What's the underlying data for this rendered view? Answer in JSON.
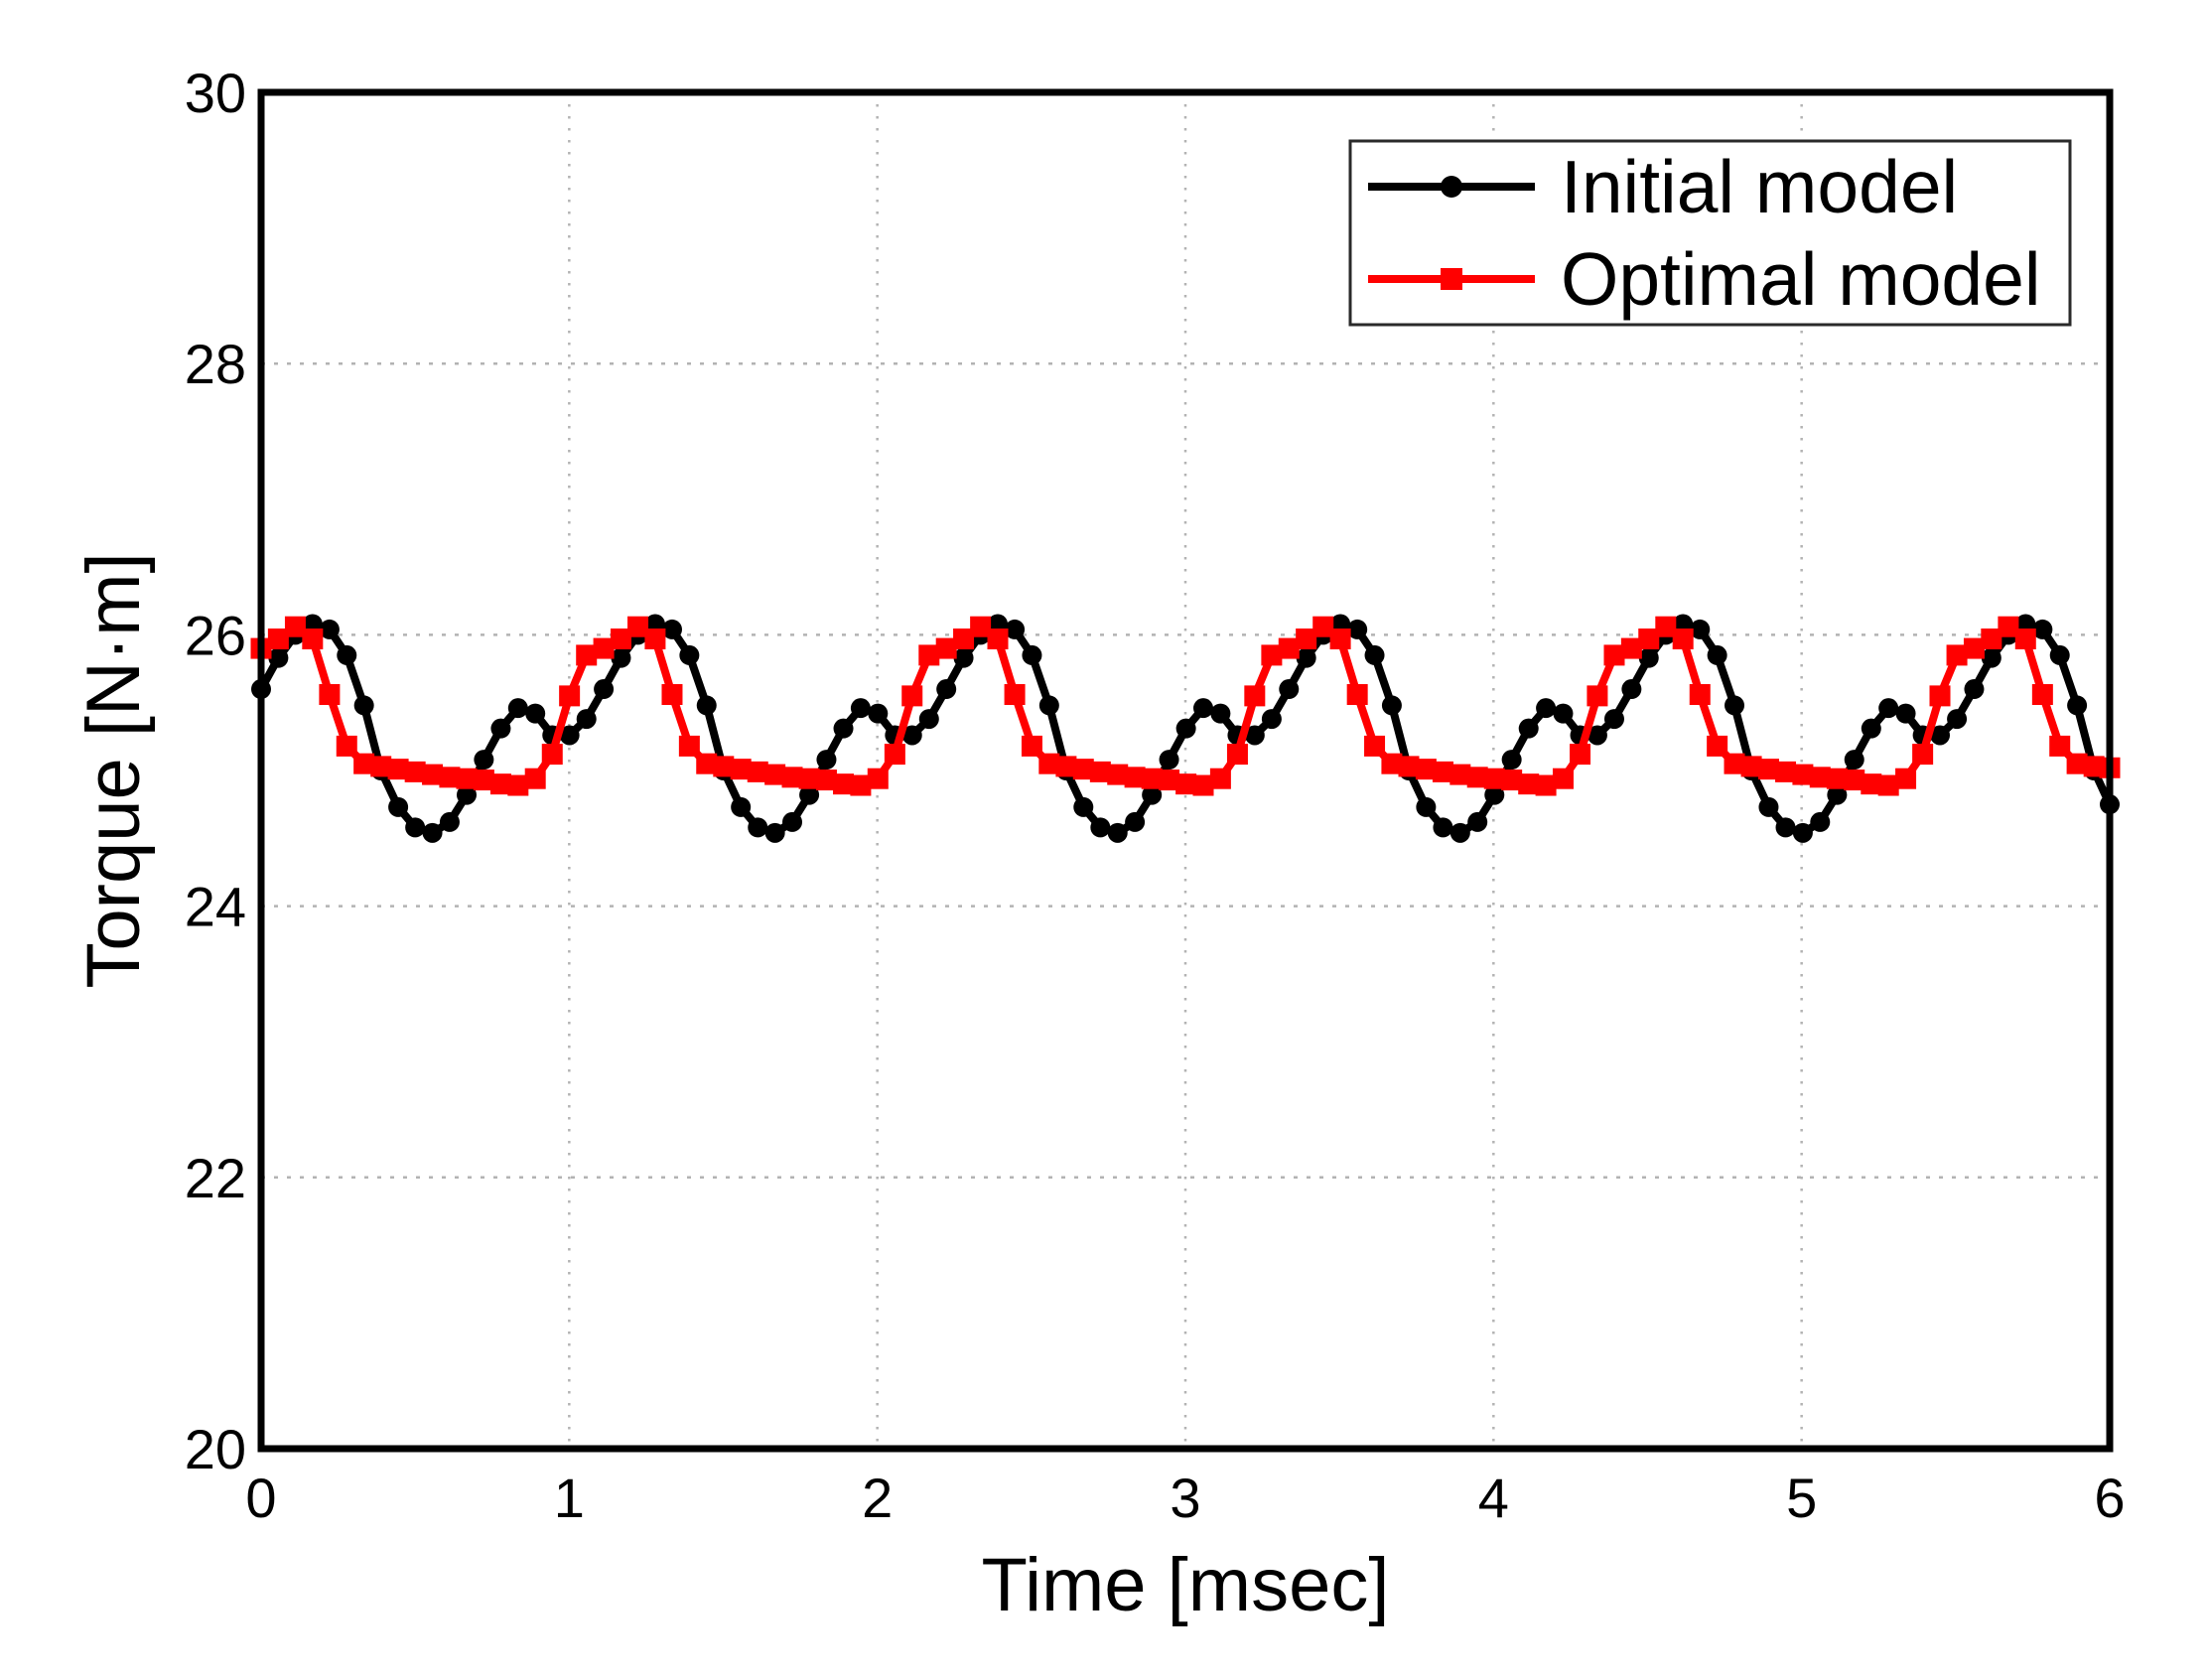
{
  "figure": {
    "background": "#ffffff",
    "frame_color": "#000000",
    "grid_color": "#b3b3b3"
  },
  "chart_data": {
    "type": "line",
    "title": "",
    "xlabel": "Time [msec]",
    "ylabel": "Torque [N·m]",
    "xlim": [
      0,
      6
    ],
    "ylim": [
      20,
      30
    ],
    "xticks": [
      0,
      1,
      2,
      3,
      4,
      5,
      6
    ],
    "yticks": [
      20,
      22,
      24,
      26,
      28,
      30
    ],
    "xtick_labels": [
      "0",
      "1",
      "2",
      "3",
      "4",
      "5",
      "6"
    ],
    "ytick_labels": [
      "20",
      "22",
      "24",
      "26",
      "28",
      "30"
    ],
    "grid": true,
    "legend_position": "top-right",
    "x": [
      0,
      0.056,
      0.111,
      0.167,
      0.222,
      0.278,
      0.334,
      0.389,
      0.445,
      0.5,
      0.556,
      0.612,
      0.667,
      0.723,
      0.778,
      0.834,
      0.89,
      0.945,
      1.001,
      1.056,
      1.112,
      1.168,
      1.223,
      1.279,
      1.334,
      1.39,
      1.446,
      1.501,
      1.557,
      1.612,
      1.668,
      1.724,
      1.779,
      1.835,
      1.89,
      1.946,
      2.002,
      2.057,
      2.113,
      2.168,
      2.224,
      2.28,
      2.335,
      2.391,
      2.446,
      2.502,
      2.558,
      2.613,
      2.669,
      2.724,
      2.78,
      2.836,
      2.891,
      2.947,
      3.002,
      3.058,
      3.114,
      3.169,
      3.225,
      3.28,
      3.336,
      3.392,
      3.447,
      3.503,
      3.558,
      3.614,
      3.67,
      3.725,
      3.781,
      3.836,
      3.892,
      3.948,
      4.003,
      4.059,
      4.114,
      4.17,
      4.226,
      4.281,
      4.337,
      4.392,
      4.448,
      4.504,
      4.559,
      4.615,
      4.67,
      4.726,
      4.782,
      4.837,
      4.893,
      4.948,
      5.004,
      5.06,
      5.115,
      5.171,
      5.226,
      5.282,
      5.338,
      5.393,
      5.449,
      5.504,
      5.56,
      5.616,
      5.671,
      5.727,
      5.782,
      5.838,
      5.894,
      5.949,
      6.0
    ],
    "series": [
      {
        "name": "Initial model",
        "color": "#000000",
        "marker": "circle",
        "line_width": 8,
        "values": [
          25.6,
          25.83,
          26.0,
          26.08,
          26.04,
          25.85,
          25.48,
          25.0,
          24.73,
          24.58,
          24.54,
          24.62,
          24.82,
          25.08,
          25.31,
          25.46,
          25.42,
          25.26,
          25.26,
          25.38,
          25.6,
          25.83,
          26.0,
          26.08,
          26.04,
          25.85,
          25.48,
          25.0,
          24.73,
          24.58,
          24.54,
          24.62,
          24.82,
          25.08,
          25.31,
          25.46,
          25.42,
          25.26,
          25.26,
          25.38,
          25.6,
          25.83,
          26.0,
          26.08,
          26.04,
          25.85,
          25.48,
          25.0,
          24.73,
          24.58,
          24.54,
          24.62,
          24.82,
          25.08,
          25.31,
          25.46,
          25.42,
          25.26,
          25.26,
          25.38,
          25.6,
          25.83,
          26.0,
          26.08,
          26.04,
          25.85,
          25.48,
          25.0,
          24.73,
          24.58,
          24.54,
          24.62,
          24.82,
          25.08,
          25.31,
          25.46,
          25.42,
          25.26,
          25.26,
          25.38,
          25.6,
          25.83,
          26.0,
          26.08,
          26.04,
          25.85,
          25.48,
          25.0,
          24.73,
          24.58,
          24.54,
          24.62,
          24.82,
          25.08,
          25.31,
          25.46,
          25.42,
          25.26,
          25.26,
          25.38,
          25.6,
          25.83,
          26.0,
          26.08,
          26.04,
          25.85,
          25.48,
          25.0,
          24.75
        ]
      },
      {
        "name": "Optimal model",
        "color": "#ff0000",
        "marker": "square",
        "line_width": 8,
        "values": [
          25.9,
          25.97,
          26.06,
          25.97,
          25.56,
          25.18,
          25.05,
          25.03,
          25.01,
          24.99,
          24.97,
          24.95,
          24.94,
          24.93,
          24.9,
          24.89,
          24.94,
          25.12,
          25.55,
          25.85,
          25.9,
          25.97,
          26.06,
          25.97,
          25.56,
          25.18,
          25.05,
          25.03,
          25.01,
          24.99,
          24.97,
          24.95,
          24.94,
          24.93,
          24.9,
          24.89,
          24.94,
          25.12,
          25.55,
          25.85,
          25.9,
          25.97,
          26.06,
          25.97,
          25.56,
          25.18,
          25.05,
          25.03,
          25.01,
          24.99,
          24.97,
          24.95,
          24.94,
          24.93,
          24.9,
          24.89,
          24.94,
          25.12,
          25.55,
          25.85,
          25.9,
          25.97,
          26.06,
          25.97,
          25.56,
          25.18,
          25.05,
          25.03,
          25.01,
          24.99,
          24.97,
          24.95,
          24.94,
          24.93,
          24.9,
          24.89,
          24.94,
          25.12,
          25.55,
          25.85,
          25.9,
          25.97,
          26.06,
          25.97,
          25.56,
          25.18,
          25.05,
          25.03,
          25.01,
          24.99,
          24.97,
          24.95,
          24.94,
          24.93,
          24.9,
          24.89,
          24.94,
          25.12,
          25.55,
          25.85,
          25.9,
          25.97,
          26.06,
          25.97,
          25.56,
          25.18,
          25.05,
          25.03,
          25.02
        ]
      }
    ],
    "legend": {
      "items": [
        {
          "label": "Initial model"
        },
        {
          "label": "Optimal model"
        }
      ]
    }
  }
}
